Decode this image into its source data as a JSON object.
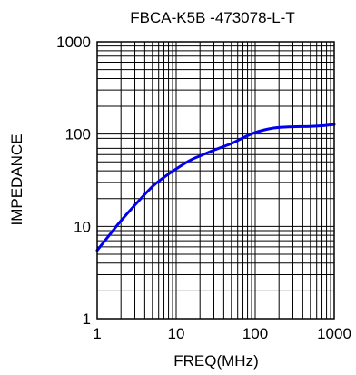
{
  "chart_data": {
    "type": "line",
    "title": "FBCA-K5B -473078-L-T",
    "xlabel": "FREQ(MHz)",
    "ylabel": "IMPEDANCE",
    "x_scale": "log",
    "y_scale": "log",
    "xlim": [
      1,
      1000
    ],
    "ylim": [
      1,
      1000
    ],
    "x_ticks": [
      "1",
      "10",
      "100",
      "1000"
    ],
    "y_ticks": [
      "1",
      "10",
      "100",
      "1000"
    ],
    "grid": true,
    "series": [
      {
        "color": "#0000ee",
        "x": [
          1,
          1.5,
          2,
          3,
          5,
          7,
          10,
          15,
          20,
          30,
          50,
          70,
          100,
          150,
          200,
          300,
          500,
          700,
          1000
        ],
        "y": [
          5.5,
          8.5,
          11.5,
          17,
          27,
          34,
          42,
          52,
          58,
          67,
          79,
          91,
          104,
          114,
          118,
          120,
          121,
          123,
          127
        ]
      }
    ]
  }
}
